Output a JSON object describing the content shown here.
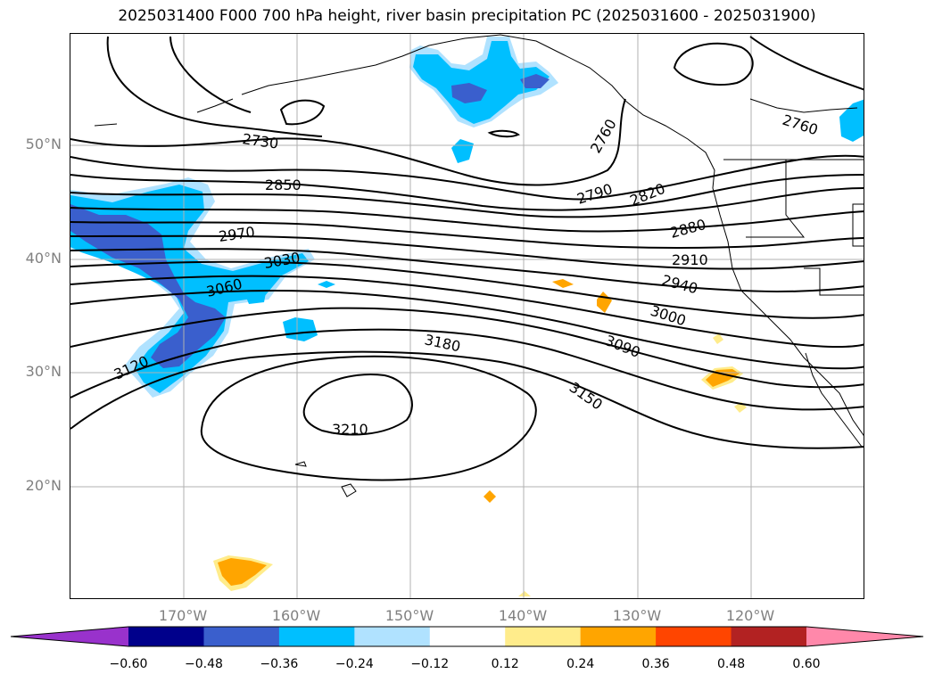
{
  "title": "2025031400 F000 700 hPa height, river basin precipitation PC (2025031600 - 2025031900)",
  "map": {
    "lat_labels": [
      "50°N",
      "40°N",
      "30°N",
      "20°N"
    ],
    "lon_labels": [
      "170°W",
      "160°W",
      "150°W",
      "140°W",
      "130°W",
      "120°W"
    ],
    "gridline_color": "#b0b0b0",
    "contour_labels": [
      "2730",
      "2760",
      "2760",
      "2790",
      "2820",
      "2850",
      "2880",
      "2910",
      "2940",
      "2970",
      "3000",
      "3030",
      "3060",
      "3090",
      "3120",
      "3150",
      "3180",
      "3210"
    ]
  },
  "colorbar": {
    "ticks": [
      "−0.60",
      "−0.48",
      "−0.36",
      "−0.24",
      "−0.12",
      "0.12",
      "0.24",
      "0.36",
      "0.48",
      "0.60"
    ],
    "colors": [
      "#9932cc",
      "#00008b",
      "#3a5fcd",
      "#00bfff",
      "#b0e2ff",
      "#ffffff",
      "#ffec8b",
      "#ffa500",
      "#ff4500",
      "#b22222",
      "#ff88aa"
    ]
  }
}
